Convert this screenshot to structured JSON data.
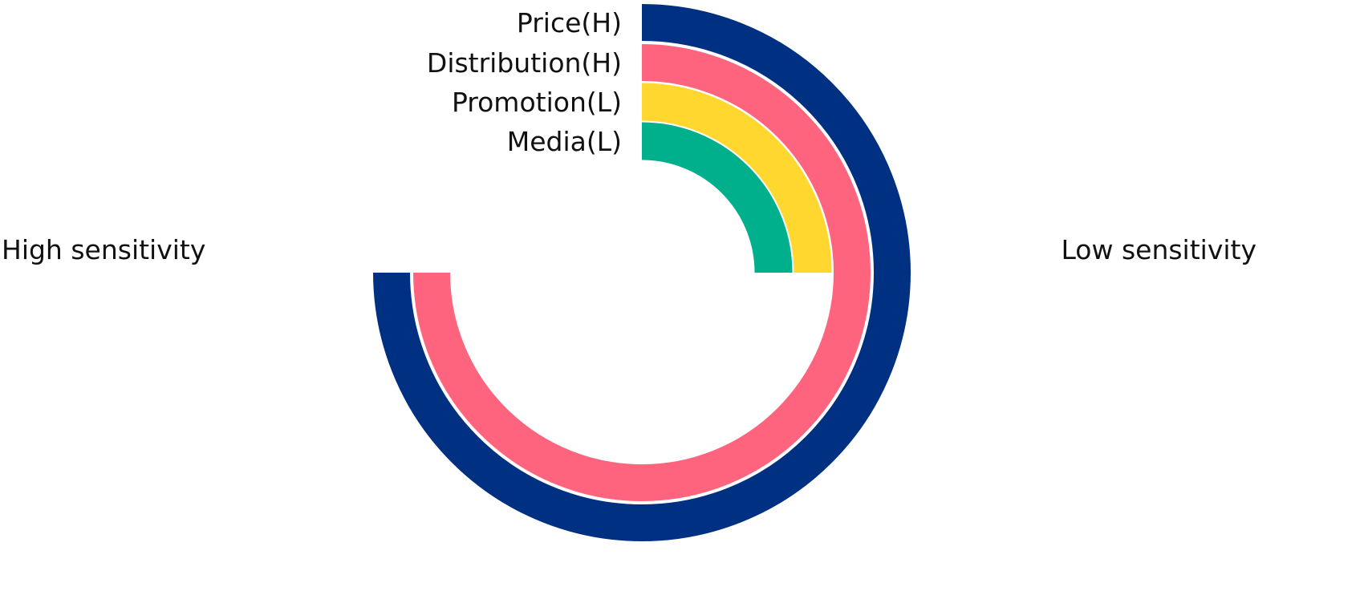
{
  "chart_data": {
    "type": "radial-bar",
    "value_unit": "fraction of full circle",
    "direction": "clockwise from top",
    "series": [
      {
        "name": "Price(H)",
        "value": 0.75,
        "color": "#003082"
      },
      {
        "name": "Distribution(H)",
        "value": 0.75,
        "color": "#FF647F"
      },
      {
        "name": "Promotion(L)",
        "value": 0.25,
        "color": "#FFD72F"
      },
      {
        "name": "Media(L)",
        "value": 0.25,
        "color": "#00AF8C"
      }
    ],
    "annotations": {
      "left": "High sensitivity",
      "right": "Low sensitivity"
    }
  }
}
